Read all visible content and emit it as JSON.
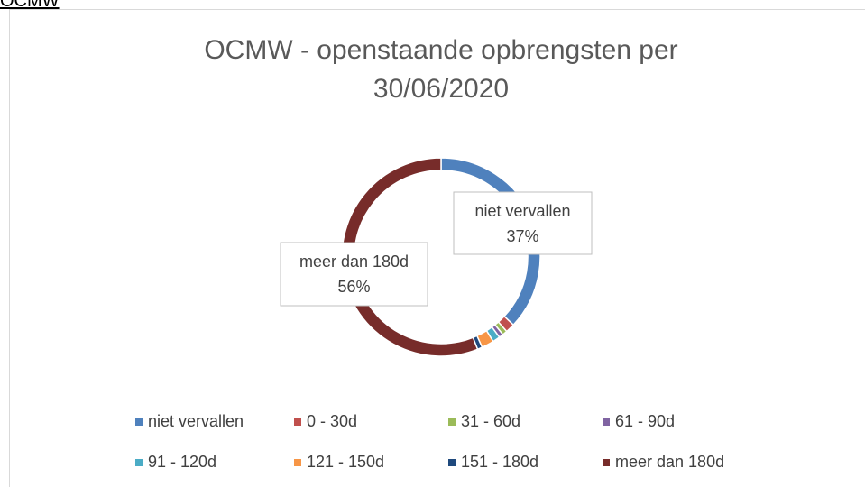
{
  "header": "OCMW",
  "chart_data": {
    "type": "doughnut",
    "title": "OCMW - openstaande opbrengsten per 30/06/2020",
    "categories": [
      "niet vervallen",
      "0 - 30d",
      "31 - 60d",
      "61 - 90d",
      "91 - 120d",
      "121 - 150d",
      "151 - 180d",
      "meer dan 180d"
    ],
    "values": [
      37,
      1.5,
      0.8,
      0.7,
      1.2,
      2,
      0.8,
      56
    ],
    "value_labels": [
      "37%",
      null,
      null,
      null,
      null,
      null,
      null,
      "56%"
    ],
    "colors": [
      "#4f81bd",
      "#c0504d",
      "#9bbb59",
      "#8064a2",
      "#4bacc6",
      "#f79646",
      "#1f497d",
      "#772c2a"
    ],
    "legend": "bottom"
  }
}
